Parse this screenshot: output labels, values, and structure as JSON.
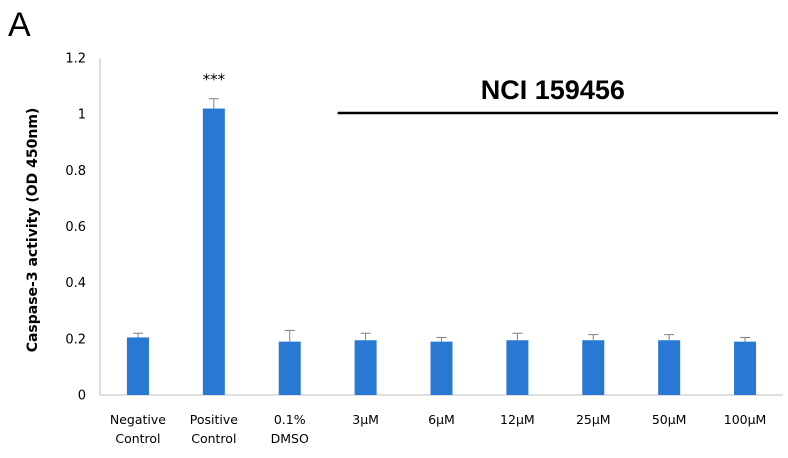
{
  "panel_label": "A",
  "chart_data": {
    "type": "bar",
    "title": "",
    "xlabel": "",
    "ylabel": "Caspase-3 activity (OD 450nm)",
    "ylim": [
      0,
      1.2
    ],
    "yticks": [
      "0",
      "0.2",
      "0.4",
      "0.6",
      "0.8",
      "1",
      "1.2"
    ],
    "grid": false,
    "categories": [
      [
        "Negative",
        "Control"
      ],
      [
        "Positive",
        "Control"
      ],
      [
        "0.1%",
        "DMSO"
      ],
      [
        "3μM"
      ],
      [
        "6μM"
      ],
      [
        "12μM"
      ],
      [
        "25μM"
      ],
      [
        "50μM"
      ],
      [
        "100μM"
      ]
    ],
    "values": [
      0.205,
      1.02,
      0.19,
      0.195,
      0.19,
      0.195,
      0.195,
      0.195,
      0.19
    ],
    "errors": [
      0.015,
      0.035,
      0.04,
      0.025,
      0.015,
      0.025,
      0.02,
      0.02,
      0.015
    ],
    "bar_color": "#2878d4",
    "annotations": [
      {
        "category_index": 1,
        "text": "***"
      }
    ],
    "group_bracket": {
      "label": "NCI 159456",
      "from_index": 3,
      "to_index": 8
    }
  }
}
